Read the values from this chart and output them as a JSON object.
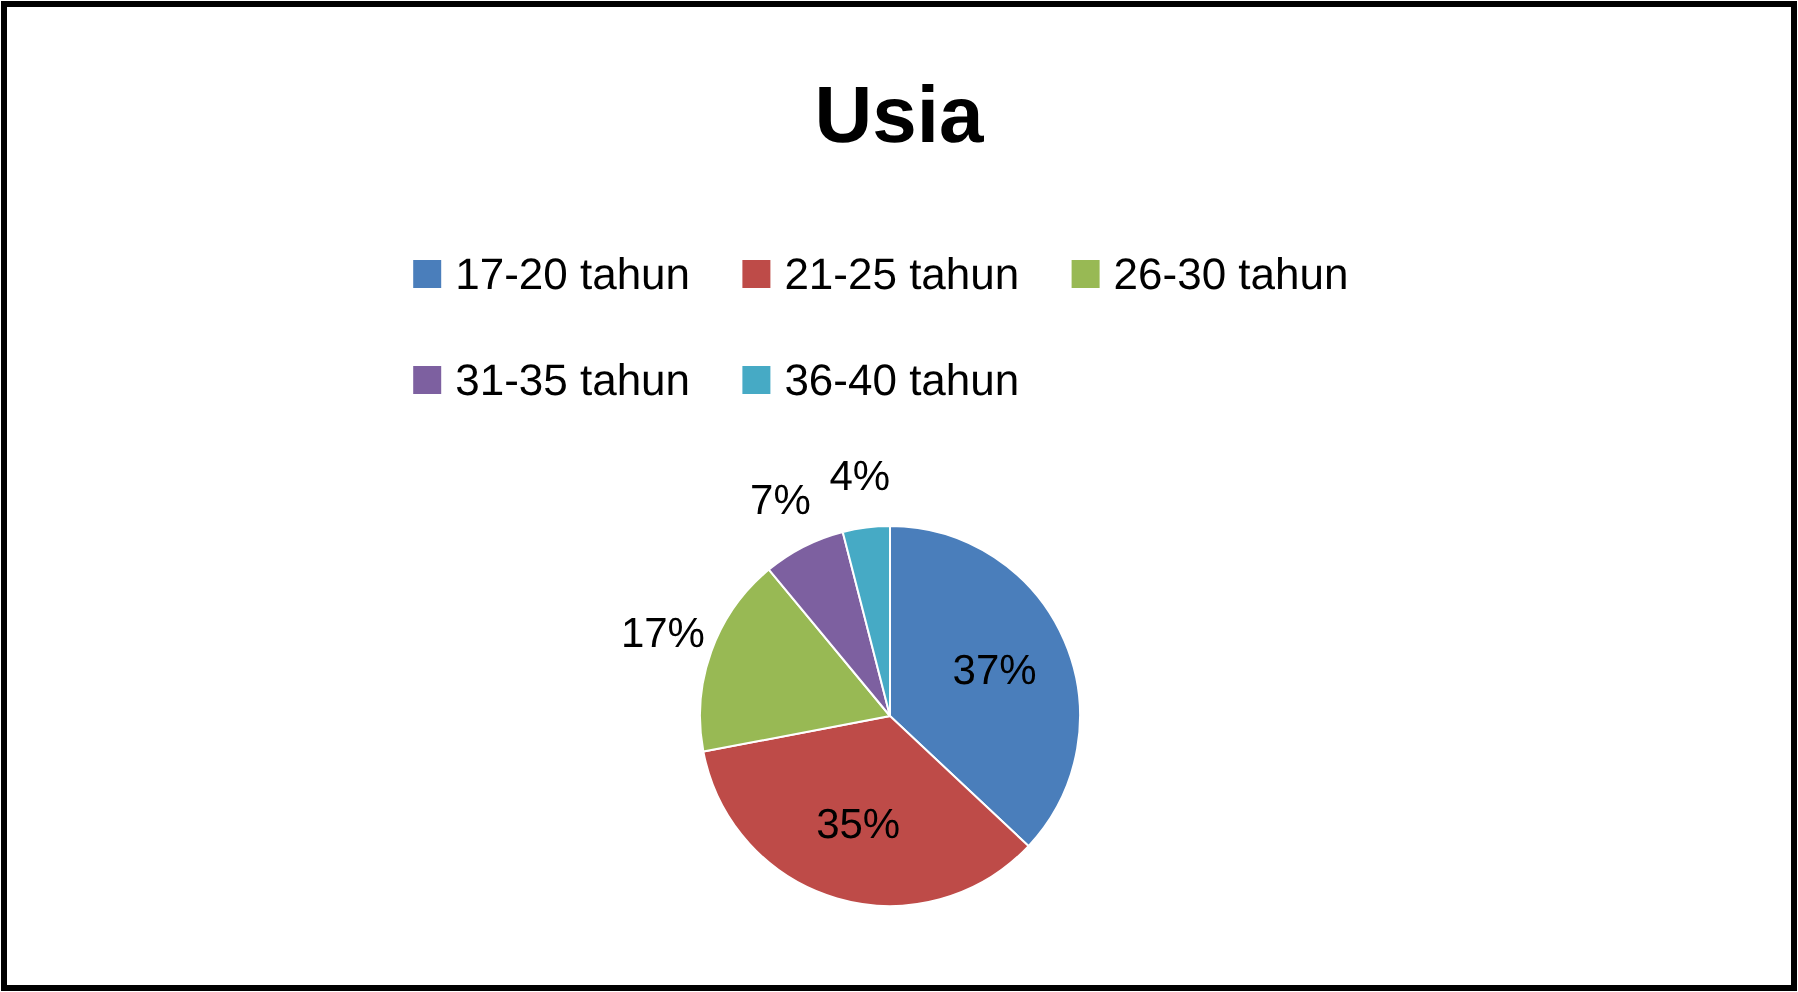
{
  "chart_data": {
    "type": "pie",
    "title": "Usia",
    "categories": [
      "17-20 tahun",
      "21-25 tahun",
      "26-30 tahun",
      "31-35 tahun",
      "36-40 tahun"
    ],
    "values": [
      37,
      35,
      17,
      7,
      4
    ],
    "colors": [
      "#4a7ebb",
      "#be4b48",
      "#98b954",
      "#7d60a0",
      "#46aac5"
    ],
    "value_labels": [
      "37%",
      "35%",
      "17%",
      "7%",
      "4%"
    ],
    "legend": "top"
  }
}
